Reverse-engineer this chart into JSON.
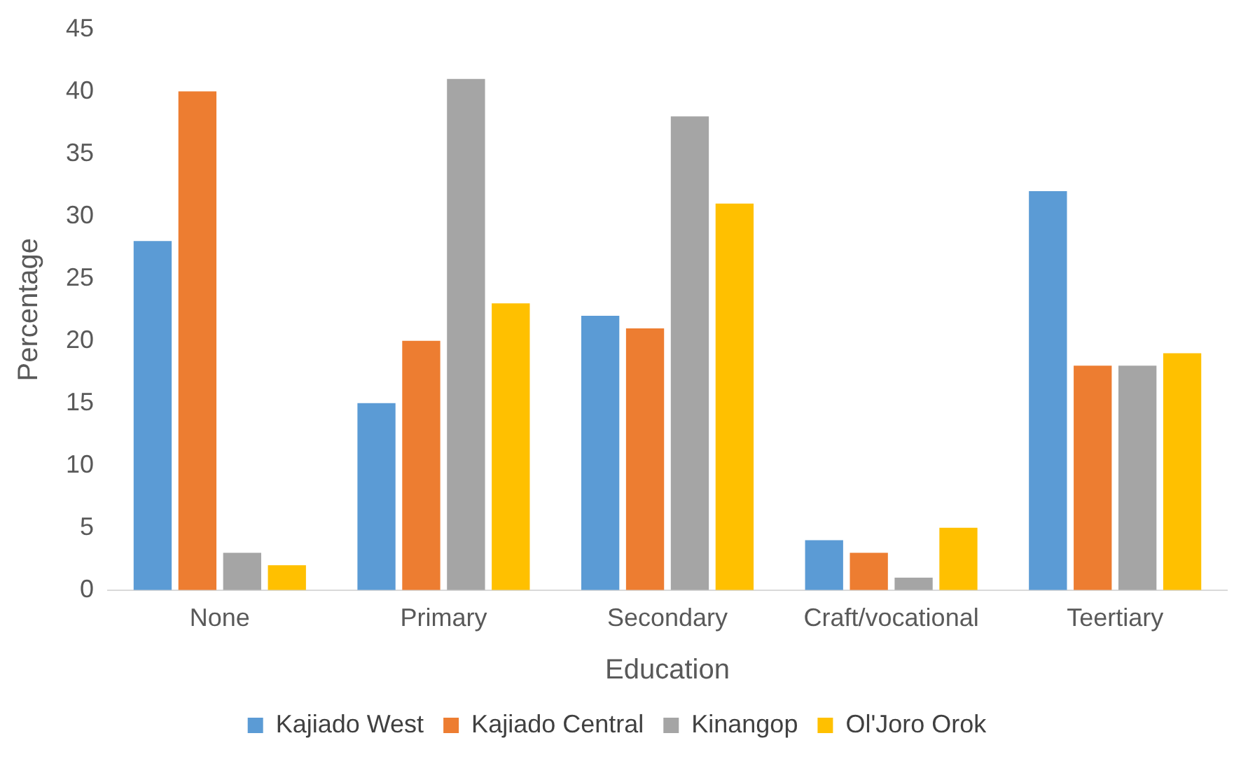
{
  "chart_data": {
    "type": "bar",
    "xlabel": "Education",
    "ylabel": "Percentage",
    "categories": [
      "None",
      "Primary",
      "Secondary",
      "Craft/vocational",
      "Teertiary"
    ],
    "series": [
      {
        "name": "Kajiado West",
        "color": "#5b9bd5",
        "values": [
          28,
          15,
          22,
          4,
          32
        ]
      },
      {
        "name": "Kajiado Central",
        "color": "#ed7d31",
        "values": [
          40,
          20,
          21,
          3,
          18
        ]
      },
      {
        "name": "Kinangop",
        "color": "#a5a5a5",
        "values": [
          3,
          41,
          38,
          1,
          18
        ]
      },
      {
        "name": "Ol'Joro Orok",
        "color": "#ffc000",
        "values": [
          2,
          23,
          31,
          5,
          19
        ]
      }
    ],
    "ylim": [
      0,
      45
    ],
    "yticks": [
      0,
      5,
      10,
      15,
      20,
      25,
      30,
      35,
      40,
      45
    ],
    "grid": false,
    "legend": "bottom"
  }
}
